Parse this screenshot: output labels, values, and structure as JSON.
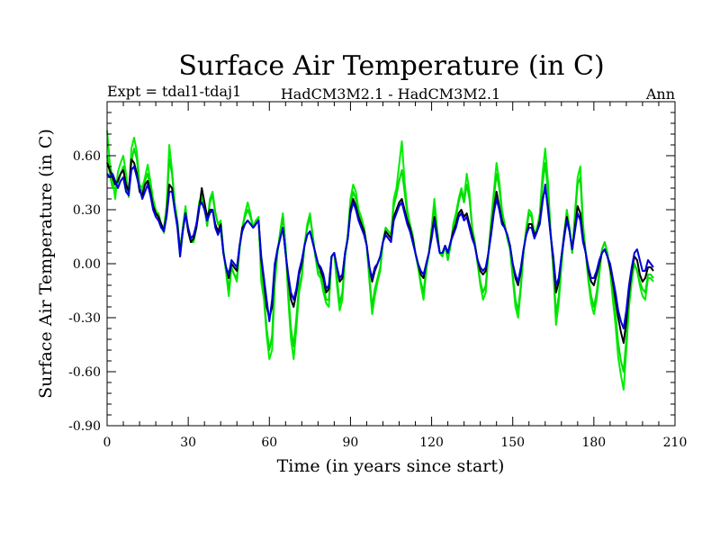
{
  "chart_data": {
    "type": "line",
    "title": "Surface Air Temperature (in C)",
    "subtitle_left": "Expt = tdal1-tdaj1",
    "subtitle_center": "HadCM3M2.1 - HadCM3M2.1",
    "subtitle_right": "Ann",
    "xlabel": "Time (in years since start)",
    "ylabel": "Surface Air Temperature (in C)",
    "xlim": [
      0,
      210
    ],
    "ylim": [
      -0.9,
      0.9
    ],
    "xticks": [
      0,
      30,
      60,
      90,
      120,
      150,
      180,
      210
    ],
    "xtick_labels": [
      "0",
      "30",
      "60",
      "90",
      "120",
      "150",
      "180",
      "210"
    ],
    "yticks": [
      -0.9,
      -0.6,
      -0.3,
      0.0,
      0.3,
      0.6
    ],
    "ytick_labels": [
      "-0.90",
      "-0.60",
      "-0.30",
      "0.00",
      "0.30",
      "0.60"
    ],
    "x_start": 0,
    "x_step": 1,
    "series": [
      {
        "name": "green-light",
        "color": "#00ee00",
        "values": [
          0.74,
          0.56,
          0.48,
          0.36,
          0.51,
          0.56,
          0.6,
          0.5,
          0.37,
          0.64,
          0.7,
          0.62,
          0.44,
          0.42,
          0.48,
          0.55,
          0.46,
          0.36,
          0.3,
          0.26,
          0.22,
          0.17,
          0.32,
          0.66,
          0.52,
          0.34,
          0.22,
          0.04,
          0.2,
          0.32,
          0.18,
          0.12,
          0.12,
          0.2,
          0.34,
          0.38,
          0.31,
          0.21,
          0.36,
          0.4,
          0.29,
          0.22,
          0.24,
          0.08,
          -0.05,
          -0.18,
          -0.02,
          -0.06,
          -0.1,
          0.08,
          0.2,
          0.28,
          0.34,
          0.28,
          0.2,
          0.24,
          0.26,
          -0.1,
          -0.2,
          -0.4,
          -0.53,
          -0.48,
          -0.12,
          0.06,
          0.18,
          0.28,
          0.1,
          -0.2,
          -0.42,
          -0.53,
          -0.36,
          -0.16,
          -0.08,
          0.1,
          0.22,
          0.28,
          0.16,
          0.04,
          -0.06,
          -0.08,
          -0.16,
          -0.22,
          -0.24,
          0.04,
          0.06,
          -0.12,
          -0.26,
          -0.2,
          0.04,
          0.16,
          0.36,
          0.44,
          0.4,
          0.3,
          0.26,
          0.2,
          0.1,
          -0.1,
          -0.28,
          -0.18,
          -0.1,
          -0.04,
          0.12,
          0.2,
          0.18,
          0.16,
          0.36,
          0.42,
          0.55,
          0.68,
          0.46,
          0.3,
          0.22,
          0.16,
          0.06,
          -0.02,
          -0.12,
          -0.2,
          -0.04,
          0.06,
          0.2,
          0.36,
          0.2,
          0.06,
          0.04,
          0.1,
          0.02,
          0.1,
          0.22,
          0.28,
          0.36,
          0.42,
          0.36,
          0.5,
          0.4,
          0.2,
          0.12,
          0.0,
          -0.12,
          -0.2,
          -0.16,
          0.06,
          0.24,
          0.4,
          0.56,
          0.46,
          0.3,
          0.22,
          0.14,
          0.08,
          -0.08,
          -0.24,
          -0.3,
          -0.14,
          0.06,
          0.2,
          0.3,
          0.28,
          0.16,
          0.2,
          0.28,
          0.5,
          0.64,
          0.46,
          0.18,
          -0.04,
          -0.34,
          -0.22,
          -0.02,
          0.16,
          0.3,
          0.2,
          0.06,
          0.28,
          0.48,
          0.54,
          0.22,
          0.06,
          -0.1,
          -0.22,
          -0.28,
          -0.2,
          -0.06,
          0.08,
          0.12,
          0.06,
          -0.04,
          -0.2,
          -0.34,
          -0.52,
          -0.62,
          -0.7,
          -0.48,
          -0.24,
          -0.1,
          0.0,
          -0.04,
          -0.12,
          -0.18,
          -0.2,
          -0.08,
          -0.08,
          -0.1
        ]
      },
      {
        "name": "green",
        "color": "#00dd00",
        "values": [
          0.6,
          0.5,
          0.42,
          0.42,
          0.45,
          0.5,
          0.54,
          0.42,
          0.38,
          0.57,
          0.64,
          0.58,
          0.42,
          0.4,
          0.46,
          0.5,
          0.42,
          0.34,
          0.28,
          0.28,
          0.22,
          0.2,
          0.32,
          0.58,
          0.5,
          0.34,
          0.24,
          0.08,
          0.2,
          0.3,
          0.18,
          0.12,
          0.14,
          0.2,
          0.32,
          0.36,
          0.31,
          0.21,
          0.34,
          0.38,
          0.28,
          0.22,
          0.2,
          0.06,
          -0.04,
          -0.14,
          -0.02,
          -0.06,
          -0.08,
          0.08,
          0.2,
          0.26,
          0.3,
          0.26,
          0.2,
          0.24,
          0.24,
          -0.06,
          -0.18,
          -0.36,
          -0.48,
          -0.4,
          -0.08,
          0.06,
          0.16,
          0.26,
          0.1,
          -0.16,
          -0.36,
          -0.46,
          -0.3,
          -0.12,
          -0.06,
          0.1,
          0.2,
          0.26,
          0.16,
          0.04,
          -0.04,
          -0.06,
          -0.12,
          -0.2,
          -0.2,
          0.04,
          0.06,
          -0.08,
          -0.22,
          -0.16,
          0.04,
          0.14,
          0.32,
          0.4,
          0.36,
          0.28,
          0.24,
          0.2,
          0.1,
          -0.08,
          -0.24,
          -0.14,
          -0.08,
          -0.02,
          0.12,
          0.2,
          0.18,
          0.16,
          0.32,
          0.38,
          0.46,
          0.52,
          0.4,
          0.28,
          0.22,
          0.16,
          0.06,
          -0.02,
          -0.1,
          -0.16,
          -0.02,
          0.06,
          0.18,
          0.32,
          0.18,
          0.06,
          0.04,
          0.1,
          0.02,
          0.1,
          0.2,
          0.26,
          0.34,
          0.4,
          0.34,
          0.44,
          0.36,
          0.2,
          0.12,
          0.0,
          -0.1,
          -0.16,
          -0.12,
          0.06,
          0.22,
          0.36,
          0.5,
          0.42,
          0.28,
          0.22,
          0.14,
          0.08,
          -0.06,
          -0.2,
          -0.26,
          -0.12,
          0.06,
          0.18,
          0.28,
          0.26,
          0.16,
          0.2,
          0.26,
          0.44,
          0.56,
          0.4,
          0.18,
          -0.02,
          -0.28,
          -0.18,
          0.0,
          0.16,
          0.28,
          0.2,
          0.06,
          0.26,
          0.44,
          0.48,
          0.2,
          0.06,
          -0.08,
          -0.18,
          -0.24,
          -0.16,
          -0.04,
          0.08,
          0.12,
          0.06,
          -0.04,
          -0.16,
          -0.28,
          -0.44,
          -0.54,
          -0.6,
          -0.42,
          -0.2,
          -0.08,
          0.0,
          -0.04,
          -0.1,
          -0.14,
          -0.16,
          -0.06,
          -0.06,
          -0.08
        ]
      },
      {
        "name": "black",
        "color": "#000000",
        "values": [
          0.56,
          0.52,
          0.48,
          0.44,
          0.46,
          0.5,
          0.52,
          0.44,
          0.4,
          0.58,
          0.56,
          0.5,
          0.4,
          0.38,
          0.44,
          0.46,
          0.4,
          0.32,
          0.28,
          0.26,
          0.22,
          0.18,
          0.28,
          0.44,
          0.42,
          0.3,
          0.22,
          0.06,
          0.18,
          0.28,
          0.18,
          0.12,
          0.14,
          0.2,
          0.3,
          0.42,
          0.34,
          0.26,
          0.3,
          0.3,
          0.22,
          0.18,
          0.22,
          0.06,
          -0.02,
          -0.08,
          0.0,
          -0.02,
          -0.04,
          0.1,
          0.2,
          0.22,
          0.24,
          0.22,
          0.2,
          0.22,
          0.24,
          0.02,
          -0.1,
          -0.24,
          -0.3,
          -0.24,
          -0.02,
          0.08,
          0.14,
          0.2,
          0.06,
          -0.08,
          -0.2,
          -0.24,
          -0.16,
          -0.06,
          0.0,
          0.1,
          0.16,
          0.18,
          0.12,
          0.06,
          0.0,
          -0.04,
          -0.08,
          -0.16,
          -0.14,
          0.04,
          0.06,
          -0.02,
          -0.1,
          -0.08,
          0.06,
          0.14,
          0.3,
          0.36,
          0.32,
          0.26,
          0.22,
          0.18,
          0.1,
          -0.02,
          -0.1,
          -0.04,
          0.0,
          0.04,
          0.12,
          0.18,
          0.16,
          0.14,
          0.26,
          0.3,
          0.34,
          0.36,
          0.3,
          0.24,
          0.2,
          0.14,
          0.06,
          0.0,
          -0.06,
          -0.08,
          0.0,
          0.06,
          0.16,
          0.26,
          0.16,
          0.06,
          0.06,
          0.1,
          0.06,
          0.12,
          0.18,
          0.22,
          0.28,
          0.3,
          0.26,
          0.28,
          0.22,
          0.16,
          0.1,
          0.02,
          -0.04,
          -0.06,
          -0.04,
          0.06,
          0.18,
          0.3,
          0.4,
          0.32,
          0.24,
          0.2,
          0.16,
          0.1,
          0.0,
          -0.08,
          -0.12,
          -0.04,
          0.08,
          0.16,
          0.22,
          0.22,
          0.16,
          0.18,
          0.24,
          0.36,
          0.42,
          0.32,
          0.16,
          0.02,
          -0.16,
          -0.1,
          0.04,
          0.16,
          0.26,
          0.18,
          0.08,
          0.2,
          0.32,
          0.28,
          0.14,
          0.06,
          -0.04,
          -0.1,
          -0.12,
          -0.06,
          0.0,
          0.06,
          0.08,
          0.04,
          -0.02,
          -0.1,
          -0.2,
          -0.3,
          -0.38,
          -0.44,
          -0.32,
          -0.16,
          -0.04,
          0.04,
          0.02,
          -0.06,
          -0.1,
          -0.08,
          -0.02,
          -0.02,
          -0.04
        ]
      },
      {
        "name": "blue",
        "color": "#0000dd",
        "values": [
          0.5,
          0.48,
          0.5,
          0.46,
          0.42,
          0.46,
          0.48,
          0.4,
          0.38,
          0.52,
          0.54,
          0.48,
          0.42,
          0.36,
          0.4,
          0.44,
          0.38,
          0.3,
          0.26,
          0.24,
          0.2,
          0.18,
          0.26,
          0.4,
          0.4,
          0.3,
          0.2,
          0.04,
          0.18,
          0.28,
          0.2,
          0.14,
          0.16,
          0.22,
          0.32,
          0.34,
          0.3,
          0.24,
          0.28,
          0.3,
          0.2,
          0.16,
          0.2,
          0.06,
          -0.02,
          -0.06,
          0.02,
          0.0,
          -0.02,
          0.1,
          0.18,
          0.22,
          0.24,
          0.22,
          0.2,
          0.22,
          0.24,
          0.04,
          -0.08,
          -0.2,
          -0.32,
          -0.2,
          0.0,
          0.08,
          0.14,
          0.2,
          0.06,
          -0.06,
          -0.16,
          -0.2,
          -0.14,
          -0.04,
          0.02,
          0.1,
          0.16,
          0.18,
          0.12,
          0.06,
          0.0,
          -0.02,
          -0.06,
          -0.14,
          -0.12,
          0.04,
          0.06,
          -0.02,
          -0.08,
          -0.06,
          0.06,
          0.14,
          0.28,
          0.34,
          0.3,
          0.24,
          0.2,
          0.16,
          0.1,
          -0.02,
          -0.08,
          -0.02,
          0.0,
          0.04,
          0.12,
          0.16,
          0.14,
          0.12,
          0.24,
          0.28,
          0.32,
          0.34,
          0.28,
          0.22,
          0.18,
          0.12,
          0.06,
          0.0,
          -0.04,
          -0.06,
          0.0,
          0.06,
          0.14,
          0.24,
          0.14,
          0.06,
          0.06,
          0.1,
          0.06,
          0.12,
          0.16,
          0.2,
          0.26,
          0.28,
          0.24,
          0.26,
          0.2,
          0.14,
          0.1,
          0.02,
          -0.02,
          -0.04,
          -0.02,
          0.06,
          0.16,
          0.28,
          0.36,
          0.3,
          0.22,
          0.2,
          0.16,
          0.1,
          0.0,
          -0.06,
          -0.1,
          -0.02,
          0.08,
          0.16,
          0.2,
          0.2,
          0.14,
          0.18,
          0.22,
          0.34,
          0.44,
          0.3,
          0.16,
          0.04,
          -0.12,
          -0.08,
          0.04,
          0.14,
          0.24,
          0.18,
          0.08,
          0.18,
          0.28,
          0.24,
          0.12,
          0.06,
          -0.02,
          -0.08,
          -0.08,
          -0.04,
          0.02,
          0.06,
          0.08,
          0.04,
          0.0,
          -0.08,
          -0.16,
          -0.26,
          -0.32,
          -0.36,
          -0.26,
          -0.12,
          -0.02,
          0.06,
          0.08,
          0.02,
          -0.04,
          -0.04,
          0.02,
          0.0,
          -0.02
        ]
      }
    ]
  }
}
